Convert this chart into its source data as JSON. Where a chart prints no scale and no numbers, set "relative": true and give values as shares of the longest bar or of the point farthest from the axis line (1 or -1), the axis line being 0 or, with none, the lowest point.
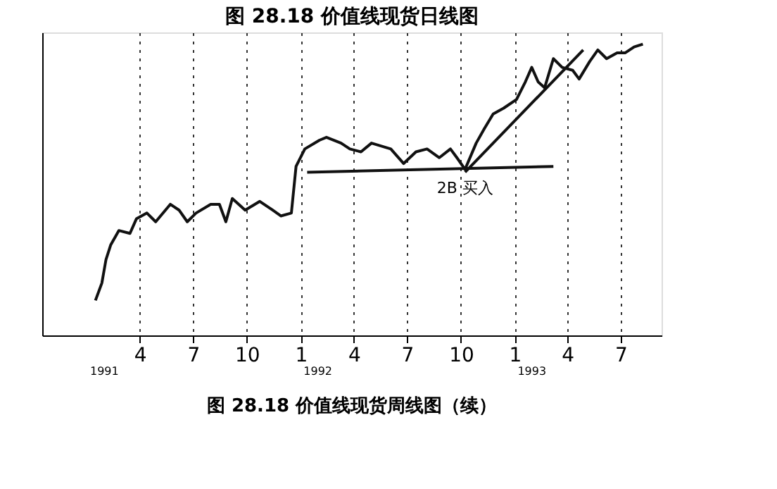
{
  "chart_data": {
    "type": "line",
    "title": "图 28.18   价值线现货日线图",
    "relative": true,
    "grid": "x",
    "xlim": [
      "1990-10-16",
      "1993-09-09"
    ],
    "xticks": [
      {
        "value": "1991-04",
        "label": "4"
      },
      {
        "value": "1991-07",
        "label": "7"
      },
      {
        "value": "1991-10",
        "label": "10"
      },
      {
        "value": "1992-01",
        "label": "1"
      },
      {
        "value": "1992-04",
        "label": "4"
      },
      {
        "value": "1992-07",
        "label": "7"
      },
      {
        "value": "1992-10",
        "label": "10"
      },
      {
        "value": "1993-01",
        "label": "1"
      },
      {
        "value": "1993-04",
        "label": "4"
      },
      {
        "value": "1993-07",
        "label": "7"
      }
    ],
    "series": [
      {
        "color": "#111111",
        "x": [
          "1991-01-15",
          "1991-01-26",
          "1991-02-02",
          "1991-02-10",
          "1991-02-24",
          "1991-03-15",
          "1991-03-26",
          "1991-04-13",
          "1991-04-28",
          "1991-05-23",
          "1991-06-07",
          "1991-06-21",
          "1991-07-06",
          "1991-07-31",
          "1991-08-15",
          "1991-08-26",
          "1991-09-06",
          "1991-09-28",
          "1991-10-23",
          "1991-11-14",
          "1991-11-28",
          "1991-12-16",
          "1991-12-24",
          "1992-01-08",
          "1992-02-02",
          "1992-02-14",
          "1992-03-10",
          "1992-03-25",
          "1992-04-13",
          "1992-05-01",
          "1992-06-03",
          "1992-06-25",
          "1992-07-16",
          "1992-08-04",
          "1992-08-25",
          "1992-09-13",
          "1992-09-24",
          "1992-10-08",
          "1992-10-27",
          "1992-11-10",
          "1992-11-25",
          "1992-12-13",
          "1993-01-04",
          "1993-01-19",
          "1993-01-30",
          "1993-02-10",
          "1993-02-21",
          "1993-03-08",
          "1993-03-23",
          "1993-04-10",
          "1993-04-21",
          "1993-05-09",
          "1993-05-23",
          "1993-06-07",
          "1993-06-25",
          "1993-07-09",
          "1993-07-24",
          "1993-08-08"
        ],
        "values": [
          0.12,
          0.18,
          0.26,
          0.31,
          0.36,
          0.35,
          0.4,
          0.42,
          0.39,
          0.45,
          0.43,
          0.39,
          0.42,
          0.45,
          0.45,
          0.39,
          0.47,
          0.43,
          0.46,
          0.43,
          0.41,
          0.42,
          0.58,
          0.64,
          0.67,
          0.68,
          0.66,
          0.64,
          0.63,
          0.66,
          0.64,
          0.59,
          0.63,
          0.64,
          0.61,
          0.64,
          0.61,
          0.57,
          0.66,
          0.71,
          0.76,
          0.78,
          0.81,
          0.87,
          0.92,
          0.87,
          0.85,
          0.95,
          0.92,
          0.91,
          0.88,
          0.94,
          0.98,
          0.95,
          0.97,
          0.97,
          0.99,
          1.0
        ]
      },
      {
        "type": "line",
        "color": "#111111",
        "x": [
          "1992-01-12",
          "1993-03-08"
        ],
        "values": [
          0.56,
          0.58
        ]
      },
      {
        "type": "line",
        "color": "#111111",
        "x": [
          "1992-10-08",
          "1993-04-28"
        ],
        "values": [
          0.56,
          0.98
        ]
      }
    ],
    "annotations": [
      {
        "text": "2B 买入",
        "x": "1992-10-08",
        "y": 0.56
      },
      "1991",
      "1992",
      "1993",
      "图 28.18   价值线现货周线图（续）"
    ]
  }
}
